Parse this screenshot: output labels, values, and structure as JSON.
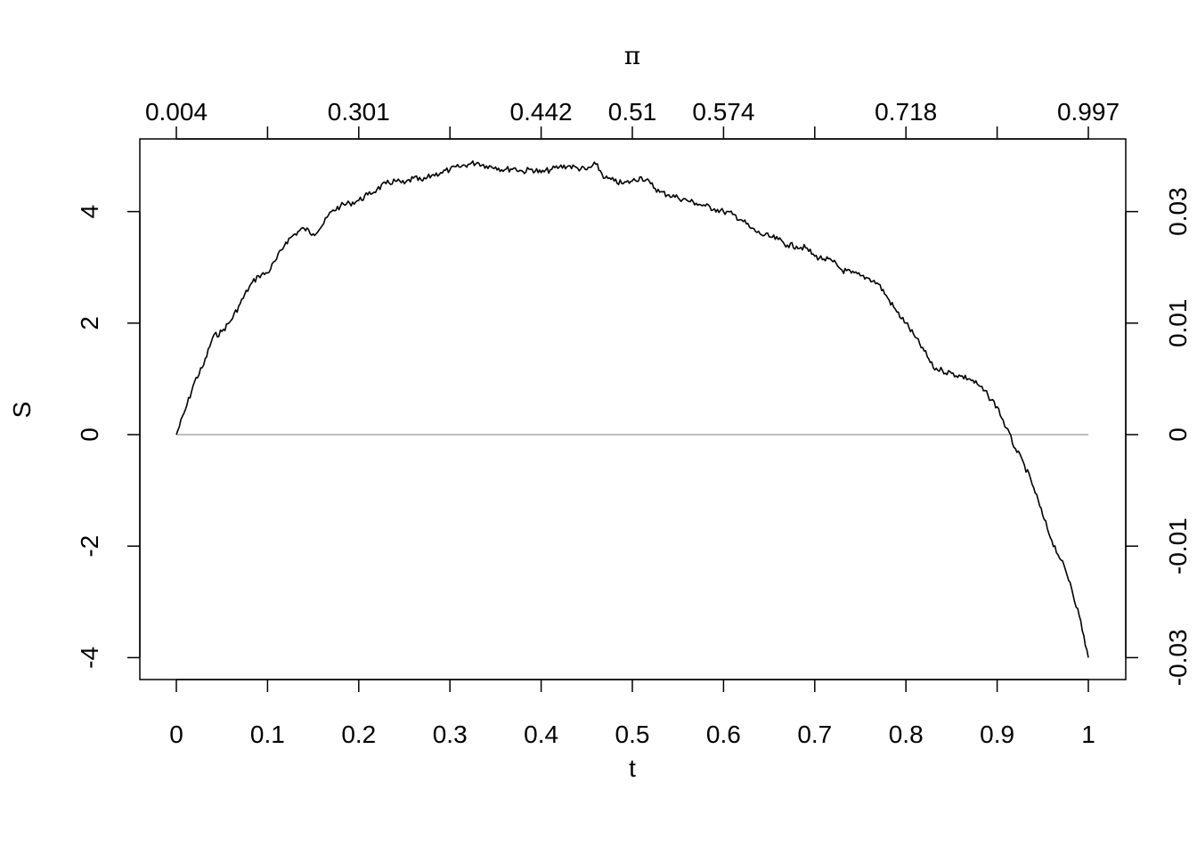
{
  "chart_data": {
    "type": "line",
    "xlabel": "t",
    "ylabel": "S",
    "top_axis_label": "π",
    "xlim": [
      0,
      1
    ],
    "ylim": [
      -4,
      5
    ],
    "x_ticks": [
      "0",
      "0.1",
      "0.2",
      "0.3",
      "0.4",
      "0.5",
      "0.6",
      "0.7",
      "0.8",
      "0.9",
      "1"
    ],
    "x_tick_values": [
      0,
      0.1,
      0.2,
      0.3,
      0.4,
      0.5,
      0.6,
      0.7,
      0.8,
      0.9,
      1.0
    ],
    "y_ticks": [
      "-4",
      "-2",
      "0",
      "2",
      "4"
    ],
    "y_tick_values": [
      -4,
      -2,
      0,
      2,
      4
    ],
    "top_ticks": [
      "0.004",
      "0.301",
      "0.442",
      "0.51",
      "0.574",
      "0.718",
      "0.997"
    ],
    "top_tick_positions": [
      0,
      0.2,
      0.4,
      0.5,
      0.6,
      0.8,
      1.0
    ],
    "top_unlabeled_tick_positions": [
      0.1,
      0.3,
      0.7,
      0.9
    ],
    "right_ticks": [
      "-0.03",
      "-0.01",
      "0",
      "0.01",
      "0.03"
    ],
    "right_tick_positions": [
      -4,
      -2,
      0,
      2,
      4
    ],
    "reference_line": {
      "y": 0,
      "color": "#bebebe"
    },
    "series": [
      {
        "color": "#000000",
        "x": [
          0,
          0.01,
          0.02,
          0.03,
          0.04,
          0.05,
          0.06,
          0.07,
          0.08,
          0.09,
          0.1,
          0.11,
          0.12,
          0.13,
          0.14,
          0.15,
          0.16,
          0.17,
          0.18,
          0.19,
          0.2,
          0.21,
          0.22,
          0.23,
          0.24,
          0.25,
          0.26,
          0.27,
          0.28,
          0.29,
          0.3,
          0.31,
          0.32,
          0.33,
          0.34,
          0.35,
          0.36,
          0.37,
          0.38,
          0.39,
          0.4,
          0.41,
          0.42,
          0.43,
          0.44,
          0.45,
          0.46,
          0.47,
          0.48,
          0.49,
          0.5,
          0.51,
          0.52,
          0.53,
          0.54,
          0.55,
          0.56,
          0.57,
          0.58,
          0.59,
          0.6,
          0.61,
          0.62,
          0.63,
          0.64,
          0.65,
          0.66,
          0.67,
          0.68,
          0.69,
          0.7,
          0.71,
          0.72,
          0.73,
          0.74,
          0.75,
          0.76,
          0.77,
          0.78,
          0.79,
          0.8,
          0.81,
          0.82,
          0.83,
          0.84,
          0.85,
          0.86,
          0.87,
          0.88,
          0.89,
          0.9,
          0.91,
          0.92,
          0.93,
          0.94,
          0.95,
          0.96,
          0.97,
          0.98,
          0.99,
          1.0
        ],
        "y": [
          0,
          0.45,
          0.95,
          1.25,
          1.75,
          1.85,
          2.05,
          2.35,
          2.65,
          2.85,
          2.9,
          3.15,
          3.45,
          3.6,
          3.7,
          3.6,
          3.75,
          4.0,
          4.1,
          4.15,
          4.2,
          4.3,
          4.4,
          4.5,
          4.55,
          4.5,
          4.6,
          4.55,
          4.65,
          4.7,
          4.75,
          4.8,
          4.85,
          4.88,
          4.82,
          4.8,
          4.75,
          4.78,
          4.72,
          4.76,
          4.7,
          4.75,
          4.8,
          4.82,
          4.78,
          4.75,
          4.85,
          4.6,
          4.55,
          4.5,
          4.55,
          4.62,
          4.5,
          4.35,
          4.3,
          4.25,
          4.2,
          4.15,
          4.1,
          4.05,
          4.0,
          3.95,
          3.85,
          3.7,
          3.6,
          3.55,
          3.5,
          3.4,
          3.38,
          3.35,
          3.2,
          3.15,
          3.1,
          2.95,
          2.9,
          2.85,
          2.8,
          2.7,
          2.45,
          2.2,
          2.0,
          1.75,
          1.5,
          1.2,
          1.15,
          1.1,
          1.05,
          1.0,
          0.88,
          0.7,
          0.5,
          0.12,
          -0.25,
          -0.55,
          -0.95,
          -1.45,
          -1.9,
          -2.25,
          -2.65,
          -3.25,
          -4.0
        ]
      }
    ]
  }
}
